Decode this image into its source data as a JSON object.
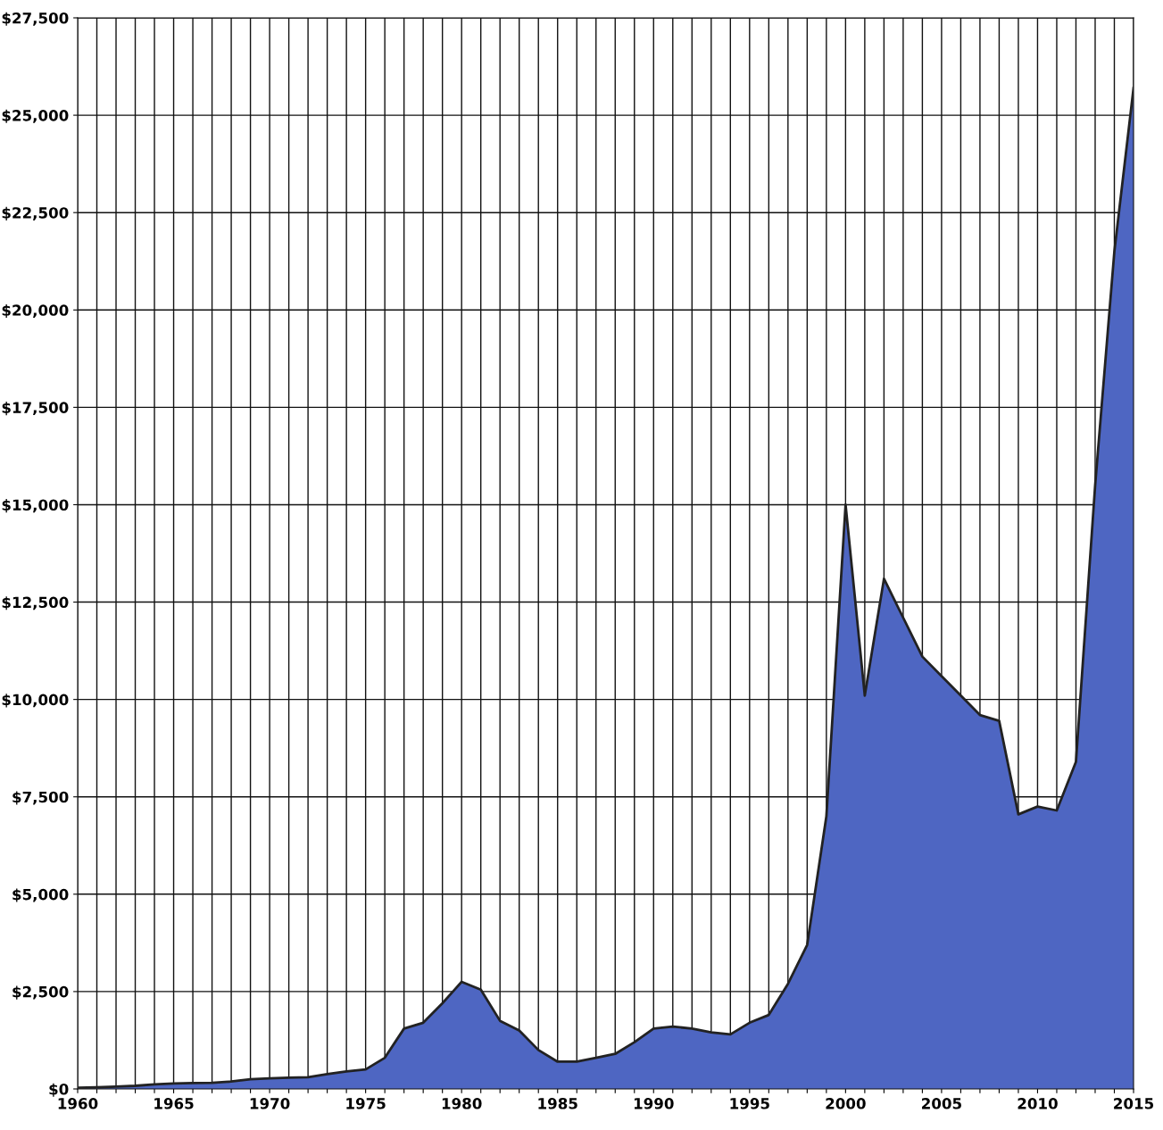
{
  "chart_data": {
    "type": "area",
    "x": [
      1960,
      1961,
      1962,
      1963,
      1964,
      1965,
      1966,
      1967,
      1968,
      1969,
      1970,
      1971,
      1972,
      1973,
      1974,
      1975,
      1976,
      1977,
      1978,
      1979,
      1980,
      1981,
      1982,
      1983,
      1984,
      1985,
      1986,
      1987,
      1988,
      1989,
      1990,
      1991,
      1992,
      1993,
      1994,
      1995,
      1996,
      1997,
      1998,
      1999,
      2000,
      2001,
      2002,
      2003,
      2004,
      2005,
      2006,
      2007,
      2008,
      2009,
      2010,
      2011,
      2012,
      2013,
      2014,
      2015
    ],
    "series": [
      {
        "color": "#4e66c2",
        "values": [
          30,
          40,
          60,
          80,
          120,
          140,
          150,
          160,
          190,
          250,
          270,
          290,
          300,
          380,
          450,
          500,
          800,
          1550,
          1700,
          2200,
          2750,
          2550,
          1750,
          1500,
          1000,
          700,
          700,
          800,
          900,
          1200,
          1550,
          1600,
          1550,
          1450,
          1400,
          1700,
          1900,
          2700,
          3700,
          7000,
          15000,
          10100,
          13100,
          12100,
          11100,
          10600,
          10100,
          9600,
          9450,
          7050,
          7250,
          7150,
          8400,
          15500,
          21500,
          25700
        ]
      }
    ],
    "xlim": [
      1960,
      2015
    ],
    "xticks": [
      1960,
      {
        "value": 1961,
        "label": null
      },
      {
        "value": 1962,
        "label": null
      },
      {
        "value": 1963,
        "label": null
      },
      {
        "value": 1964,
        "label": null
      },
      1965,
      {
        "value": 1966,
        "label": null
      },
      {
        "value": 1967,
        "label": null
      },
      {
        "value": 1968,
        "label": null
      },
      {
        "value": 1969,
        "label": null
      },
      1970,
      {
        "value": 1971,
        "label": null
      },
      {
        "value": 1972,
        "label": null
      },
      {
        "value": 1973,
        "label": null
      },
      {
        "value": 1974,
        "label": null
      },
      1975,
      {
        "value": 1976,
        "label": null
      },
      {
        "value": 1977,
        "label": null
      },
      {
        "value": 1978,
        "label": null
      },
      {
        "value": 1979,
        "label": null
      },
      1980,
      {
        "value": 1981,
        "label": null
      },
      {
        "value": 1982,
        "label": null
      },
      {
        "value": 1983,
        "label": null
      },
      {
        "value": 1984,
        "label": null
      },
      1985,
      {
        "value": 1986,
        "label": null
      },
      {
        "value": 1987,
        "label": null
      },
      {
        "value": 1988,
        "label": null
      },
      {
        "value": 1989,
        "label": null
      },
      1990,
      {
        "value": 1991,
        "label": null
      },
      {
        "value": 1992,
        "label": null
      },
      {
        "value": 1993,
        "label": null
      },
      {
        "value": 1994,
        "label": null
      },
      1995,
      {
        "value": 1996,
        "label": null
      },
      {
        "value": 1997,
        "label": null
      },
      {
        "value": 1998,
        "label": null
      },
      {
        "value": 1999,
        "label": null
      },
      2000,
      {
        "value": 2001,
        "label": null
      },
      {
        "value": 2002,
        "label": null
      },
      {
        "value": 2003,
        "label": null
      },
      {
        "value": 2004,
        "label": null
      },
      2005,
      {
        "value": 2006,
        "label": null
      },
      {
        "value": 2007,
        "label": null
      },
      {
        "value": 2008,
        "label": null
      },
      {
        "value": 2009,
        "label": null
      },
      2010,
      {
        "value": 2011,
        "label": null
      },
      {
        "value": 2012,
        "label": null
      },
      {
        "value": 2013,
        "label": null
      },
      {
        "value": 2014,
        "label": null
      },
      2015
    ],
    "ylim": [
      0,
      27500
    ],
    "yticks": [
      {
        "value": 0,
        "label": "$0"
      },
      {
        "value": 2500,
        "label": "$2,500"
      },
      {
        "value": 5000,
        "label": "$5,000"
      },
      {
        "value": 7500,
        "label": "$7,500"
      },
      {
        "value": 10000,
        "label": "$10,000"
      },
      {
        "value": 12500,
        "label": "$12,500"
      },
      {
        "value": 15000,
        "label": "$15,000"
      },
      {
        "value": 17500,
        "label": "$17,500"
      },
      {
        "value": 20000,
        "label": "$20,000"
      },
      {
        "value": 22500,
        "label": "$22,500"
      },
      {
        "value": 25000,
        "label": "$25,000"
      },
      {
        "value": 27500,
        "label": "$27,500"
      }
    ],
    "grid": true
  }
}
